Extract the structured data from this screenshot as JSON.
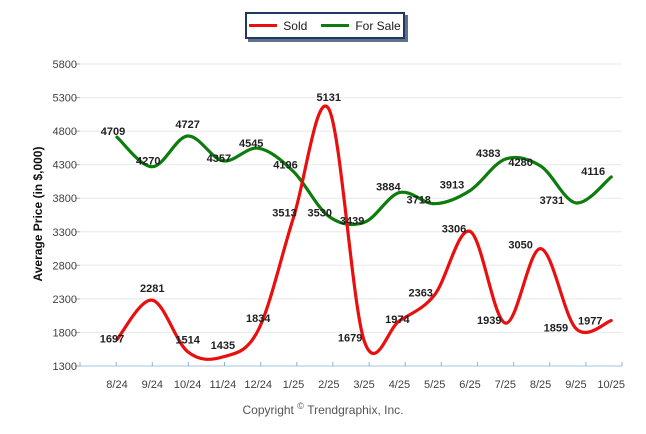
{
  "legend": {
    "items": [
      {
        "label": "Sold",
        "color": "#ea0e0e"
      },
      {
        "label": "For Sale",
        "color": "#0c7d0c"
      }
    ]
  },
  "chart_data": {
    "type": "line",
    "title": "",
    "categories": [
      "8/24",
      "9/24",
      "10/24",
      "11/24",
      "12/24",
      "1/25",
      "2/25",
      "3/25",
      "4/25",
      "5/25",
      "6/25",
      "7/25",
      "8/25",
      "9/25",
      "10/25"
    ],
    "series": [
      {
        "name": "Sold",
        "color": "#ea0e0e",
        "values": [
          1697,
          2281,
          1514,
          1435,
          1834,
          3513,
          5131,
          1679,
          1974,
          2363,
          3306,
          1939,
          3050,
          1859,
          1977
        ]
      },
      {
        "name": "For Sale",
        "color": "#0c7d0c",
        "values": [
          4709,
          4270,
          4727,
          4357,
          4545,
          4196,
          3530,
          3439,
          3884,
          3718,
          3913,
          4383,
          4280,
          3731,
          4116
        ]
      }
    ],
    "xlabel": "",
    "ylabel": "Average Price (in $,000)",
    "ylim": [
      1300,
      5800
    ],
    "ytick_step": 500,
    "grid": true,
    "legend_position": "top",
    "smooth": true
  },
  "footer": {
    "copyright_prefix": "Copyright",
    "copyright_symbol": "©",
    "copyright_suffix": "Trendgraphix, Inc."
  },
  "colors": {
    "gridline": "#e8e8e8",
    "axis_line": "#a6c3de",
    "tick_mark": "#8ab4d8",
    "tick_label": "#3f3f3f",
    "data_label": "#1f1f1f",
    "legend_border": "#1f3864",
    "copyright_text": "#555555"
  }
}
